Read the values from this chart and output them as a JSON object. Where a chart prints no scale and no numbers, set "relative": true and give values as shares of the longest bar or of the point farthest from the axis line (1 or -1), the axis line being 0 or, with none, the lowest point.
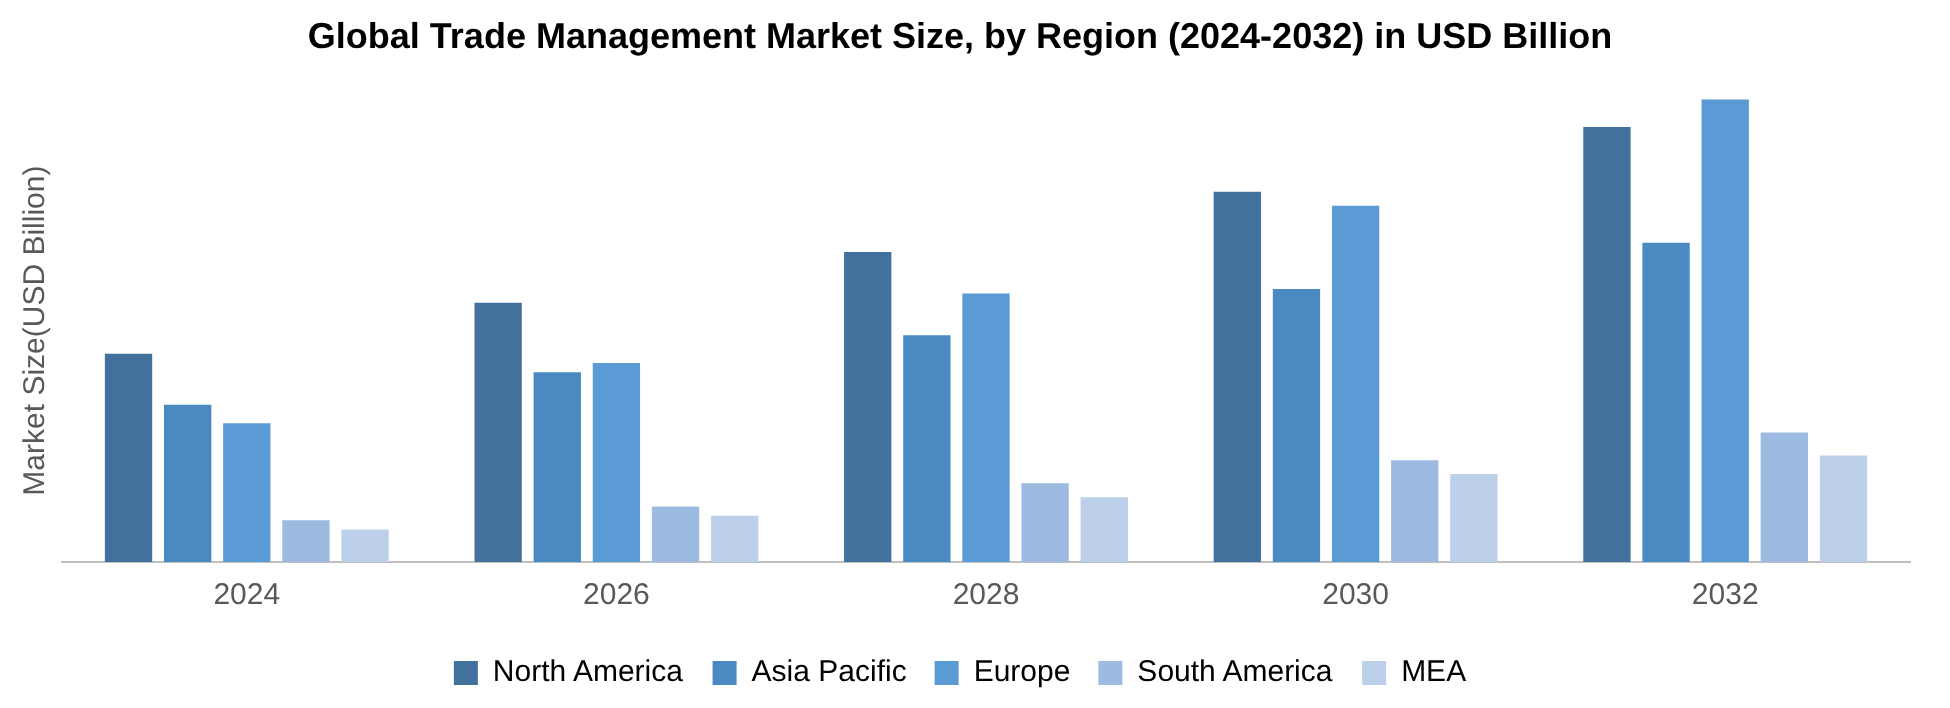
{
  "chart_data": {
    "type": "bar",
    "title": "Global Trade Management Market Size, by Region (2024-2032) in USD Billion",
    "ylabel": "Market Size(USD Billion)",
    "relative": true,
    "legend": "bottom",
    "grid": false,
    "categories": [
      "2024",
      "2026",
      "2028",
      "2030",
      "2032"
    ],
    "series": [
      {
        "name": "North America",
        "color": "#41719c",
        "values": [
          0.45,
          0.56,
          0.67,
          0.8,
          0.94
        ]
      },
      {
        "name": "Asia Pacific",
        "color": "#4a89c2",
        "values": [
          0.34,
          0.41,
          0.49,
          0.59,
          0.69
        ]
      },
      {
        "name": "Europe",
        "color": "#5b9bd5",
        "values": [
          0.3,
          0.43,
          0.58,
          0.77,
          1
        ]
      },
      {
        "name": "South America",
        "color": "#9dbbe0",
        "values": [
          0.09,
          0.12,
          0.17,
          0.22,
          0.28
        ]
      },
      {
        "name": "MEA",
        "color": "#bdd0ea",
        "values": [
          0.07,
          0.1,
          0.14,
          0.19,
          0.23
        ]
      }
    ]
  }
}
